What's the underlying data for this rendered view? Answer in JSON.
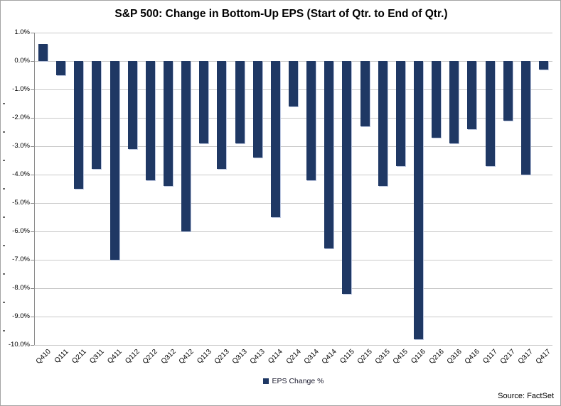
{
  "source": "Source: FactSet",
  "colors": {
    "bar": "#1F3864",
    "gridline": "#c9c9c9",
    "axis": "#8c8c8c",
    "border": "#a3a3a3",
    "background": "#ffffff"
  },
  "legend": {
    "label": "EPS Change %",
    "position": "bottom-center"
  },
  "chart_data": {
    "type": "bar",
    "title": "S&P 500: Change in Bottom-Up EPS (Start of Qtr. to End of Qtr.)",
    "series_name": "EPS Change %",
    "categories": [
      "Q410",
      "Q111",
      "Q211",
      "Q311",
      "Q411",
      "Q112",
      "Q212",
      "Q312",
      "Q412",
      "Q113",
      "Q213",
      "Q313",
      "Q413",
      "Q114",
      "Q214",
      "Q314",
      "Q414",
      "Q115",
      "Q215",
      "Q315",
      "Q415",
      "Q116",
      "Q216",
      "Q316",
      "Q416",
      "Q117",
      "Q217",
      "Q317",
      "Q417"
    ],
    "values": [
      0.6,
      -0.5,
      -4.5,
      -3.8,
      -7.0,
      -3.1,
      -4.2,
      -4.4,
      -6.0,
      -2.9,
      -3.8,
      -2.9,
      -3.4,
      -5.5,
      -1.6,
      -4.2,
      -6.6,
      -8.2,
      -2.3,
      -4.4,
      -3.7,
      -9.8,
      -2.7,
      -2.9,
      -2.4,
      -3.7,
      -2.1,
      -4.0,
      -0.3
    ],
    "unit": "%",
    "xlabel": "",
    "ylabel": "",
    "ylim": [
      -10.0,
      1.0
    ],
    "ytick_values": [
      1,
      0,
      -1,
      -2,
      -3,
      -4,
      -5,
      -6,
      -7,
      -8,
      -9,
      -10
    ],
    "ytick_labels": [
      "1.0%",
      "0.0%",
      "-1.0%",
      "-2.0%",
      "-3.0%",
      "-4.0%",
      "-5.0%",
      "-6.0%",
      "-7.0%",
      "-8.0%",
      "-9.0%",
      "-10.0%"
    ],
    "ytick_minor_dots": [
      -1.5,
      -2.5,
      -3.5,
      -4.5,
      -5.5,
      -6.5,
      -7.5,
      -8.5,
      -9.5
    ],
    "grid": true,
    "legend_position": "bottom"
  }
}
